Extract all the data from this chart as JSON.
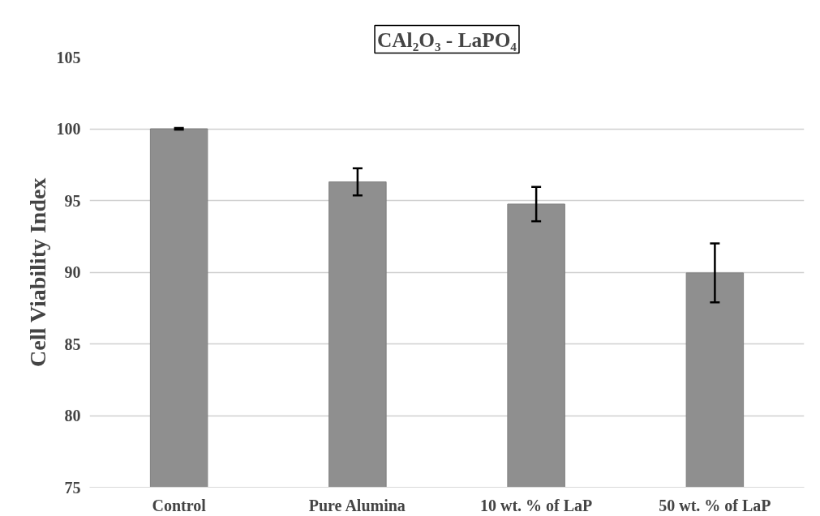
{
  "chart_data": {
    "type": "bar",
    "title": "CAl₂O₃ - LaPO₄",
    "ylabel": "Cell Viability Index",
    "categories": [
      "Control",
      "Pure Alumina",
      "10 wt. % of LaP",
      "50 wt. % of LaP"
    ],
    "values": [
      100,
      96.3,
      94.75,
      89.95
    ],
    "errors": [
      0.05,
      0.95,
      1.2,
      2.05
    ],
    "color": "#8f8f8f",
    "ylim": [
      75,
      105
    ],
    "yticks": [
      75,
      80,
      85,
      90,
      95,
      100,
      105
    ],
    "grid": "y"
  }
}
